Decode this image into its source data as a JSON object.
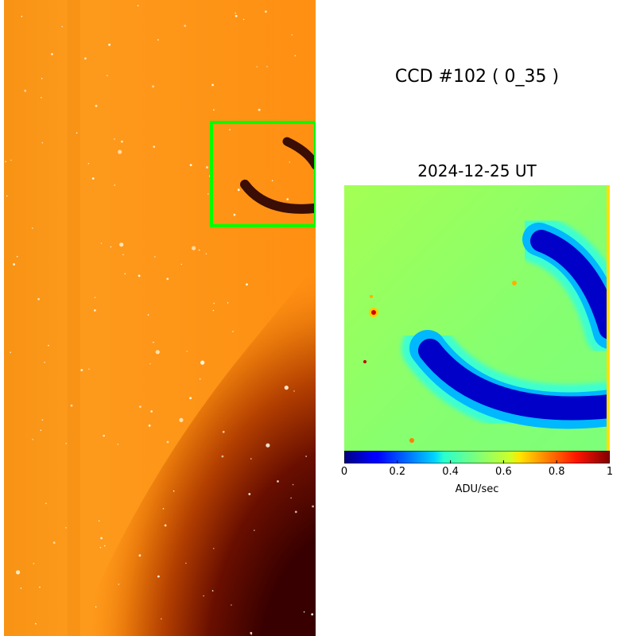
{
  "title": "CCD #102 ( 0_35 )",
  "zoom_title": "2024-12-25 UT",
  "chart_data": [
    {
      "type": "heatmap",
      "panel": "full-ccd-image",
      "colormap": "afmhot",
      "highlight_box_color": "#00ff00"
    },
    {
      "type": "heatmap",
      "panel": "zoomed-region",
      "title": "2024-12-25 UT",
      "colormap": "jet",
      "colorbar": {
        "label": "ADU/sec",
        "range": [
          0,
          1
        ],
        "ticks": [
          "0",
          "0.2",
          "0.4",
          "0.6",
          "0.8",
          "1"
        ]
      }
    }
  ],
  "colors": {
    "background_glow": "#ff9a1a",
    "dark_region": "#3a0000",
    "box": "#00ff00"
  }
}
